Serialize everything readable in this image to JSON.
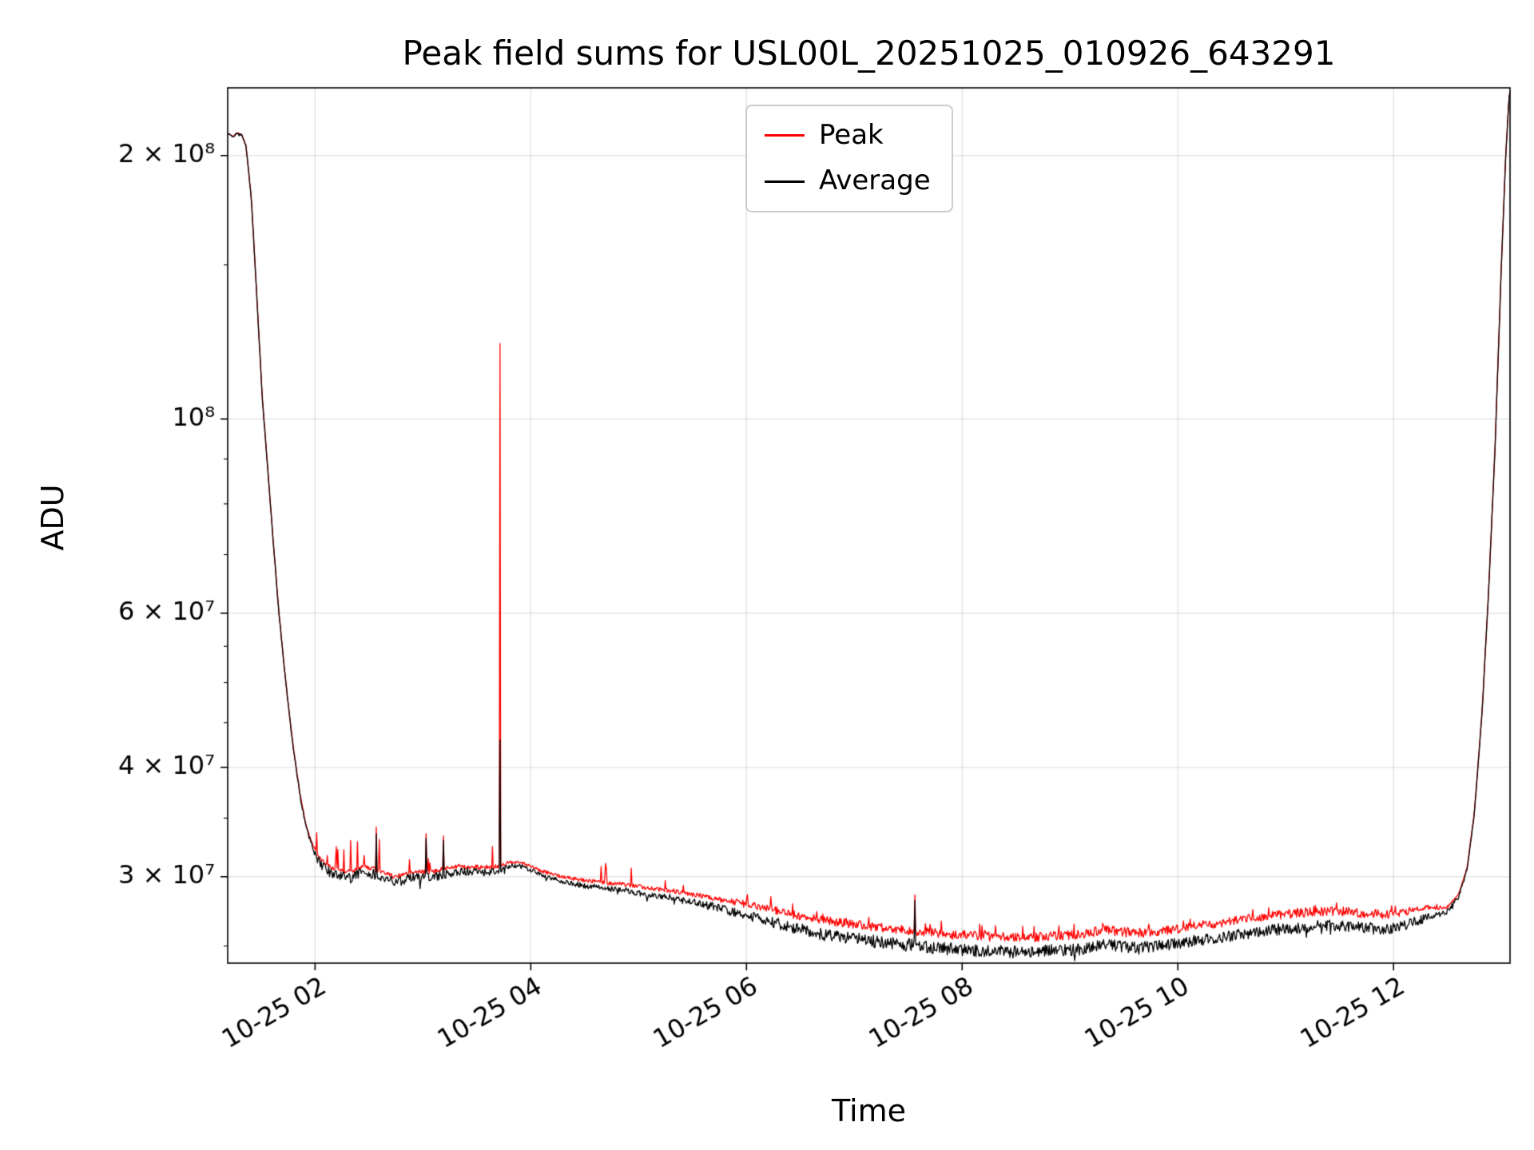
{
  "chart_data": {
    "type": "line",
    "title": "Peak field sums for USL00L_20251025_010926_643291",
    "xlabel": "Time",
    "ylabel": "ADU",
    "yscale": "log",
    "grid": true,
    "legend_position": "upper center",
    "x_domain_hours": [
      1.19,
      13.08
    ],
    "y_domain": [
      23900000.0,
      239000000.0
    ],
    "xticks": [
      {
        "hour": 2,
        "label": "10-25 02"
      },
      {
        "hour": 4,
        "label": "10-25 04"
      },
      {
        "hour": 6,
        "label": "10-25 06"
      },
      {
        "hour": 8,
        "label": "10-25 08"
      },
      {
        "hour": 10,
        "label": "10-25 10"
      },
      {
        "hour": 12,
        "label": "10-25 12"
      }
    ],
    "yticks": [
      {
        "value": 200000000.0,
        "label": "2 × 10⁸"
      },
      {
        "value": 100000000.0,
        "label": "10⁸"
      },
      {
        "value": 60000000.0,
        "label": "6 × 10⁷"
      },
      {
        "value": 40000000.0,
        "label": "4 × 10⁷"
      },
      {
        "value": 30000000.0,
        "label": "3 × 10⁷"
      }
    ],
    "yticks_minor": [
      25000000.0,
      35000000.0,
      45000000.0,
      50000000.0,
      55000000.0,
      70000000.0,
      80000000.0,
      90000000.0,
      150000000.0
    ],
    "series": [
      {
        "name": "Peak",
        "color": "#ff0000"
      },
      {
        "name": "Average",
        "color": "#000000"
      }
    ],
    "seed": 42,
    "samples": 1700,
    "average_anchors": [
      [
        1.19,
        212000000.0
      ],
      [
        1.24,
        210000000.0
      ],
      [
        1.27,
        212000000.0
      ],
      [
        1.32,
        211000000.0
      ],
      [
        1.36,
        205000000.0
      ],
      [
        1.41,
        178000000.0
      ],
      [
        1.46,
        138000000.0
      ],
      [
        1.51,
        106000000.0
      ],
      [
        1.56,
        88000000.0
      ],
      [
        1.61,
        73000000.0
      ],
      [
        1.66,
        61000000.0
      ],
      [
        1.71,
        52500000.0
      ],
      [
        1.76,
        46000000.0
      ],
      [
        1.81,
        41000000.0
      ],
      [
        1.86,
        37200000.0
      ],
      [
        1.91,
        34500000.0
      ],
      [
        1.96,
        32800000.0
      ],
      [
        2.02,
        31500000.0
      ],
      [
        2.08,
        30700000.0
      ],
      [
        2.15,
        30300000.0
      ],
      [
        2.25,
        30000000.0
      ],
      [
        2.35,
        30000000.0
      ],
      [
        2.45,
        30400000.0
      ],
      [
        2.55,
        30200000.0
      ],
      [
        2.65,
        29800000.0
      ],
      [
        2.75,
        29600000.0
      ],
      [
        2.85,
        29800000.0
      ],
      [
        2.95,
        30000000.0
      ],
      [
        3.05,
        29900000.0
      ],
      [
        3.15,
        30100000.0
      ],
      [
        3.25,
        30300000.0
      ],
      [
        3.35,
        30400000.0
      ],
      [
        3.45,
        30400000.0
      ],
      [
        3.55,
        30300000.0
      ],
      [
        3.65,
        30400000.0
      ],
      [
        3.72,
        30500000.0
      ],
      [
        3.78,
        30800000.0
      ],
      [
        3.88,
        30900000.0
      ],
      [
        3.98,
        30600000.0
      ],
      [
        4.1,
        30100000.0
      ],
      [
        4.3,
        29600000.0
      ],
      [
        4.5,
        29300000.0
      ],
      [
        4.7,
        29100000.0
      ],
      [
        4.9,
        28900000.0
      ],
      [
        5.1,
        28600000.0
      ],
      [
        5.3,
        28400000.0
      ],
      [
        5.5,
        28100000.0
      ],
      [
        5.7,
        27700000.0
      ],
      [
        5.9,
        27300000.0
      ],
      [
        6.1,
        26900000.0
      ],
      [
        6.3,
        26500000.0
      ],
      [
        6.5,
        26100000.0
      ],
      [
        6.7,
        25800000.0
      ],
      [
        6.9,
        25600000.0
      ],
      [
        7.1,
        25400000.0
      ],
      [
        7.3,
        25200000.0
      ],
      [
        7.6,
        25000000.0
      ],
      [
        7.9,
        24800000.0
      ],
      [
        8.2,
        24700000.0
      ],
      [
        8.5,
        24600000.0
      ],
      [
        8.8,
        24700000.0
      ],
      [
        9.1,
        24800000.0
      ],
      [
        9.3,
        25100000.0
      ],
      [
        9.45,
        25000000.0
      ],
      [
        9.6,
        24900000.0
      ],
      [
        9.8,
        25000000.0
      ],
      [
        10.0,
        25200000.0
      ],
      [
        10.3,
        25500000.0
      ],
      [
        10.6,
        25800000.0
      ],
      [
        10.9,
        26100000.0
      ],
      [
        11.2,
        26300000.0
      ],
      [
        11.4,
        26400000.0
      ],
      [
        11.6,
        26300000.0
      ],
      [
        11.8,
        26200000.0
      ],
      [
        11.95,
        26100000.0
      ],
      [
        12.1,
        26400000.0
      ],
      [
        12.25,
        26800000.0
      ],
      [
        12.4,
        27100000.0
      ],
      [
        12.5,
        27400000.0
      ],
      [
        12.6,
        28400000.0
      ],
      [
        12.68,
        30500000.0
      ],
      [
        12.75,
        35500000.0
      ],
      [
        12.82,
        46000000.0
      ],
      [
        12.88,
        63000000.0
      ],
      [
        12.94,
        92000000.0
      ],
      [
        13.0,
        150000000.0
      ],
      [
        13.04,
        200000000.0
      ],
      [
        13.07,
        232000000.0
      ],
      [
        13.08,
        237000000.0
      ]
    ],
    "avg_noise_anchors": [
      [
        1.19,
        0.002
      ],
      [
        1.38,
        0.003
      ],
      [
        1.95,
        0.006
      ],
      [
        2.05,
        0.013
      ],
      [
        2.5,
        0.013
      ],
      [
        3.0,
        0.013
      ],
      [
        3.6,
        0.01
      ],
      [
        3.8,
        0.006
      ],
      [
        4.5,
        0.007
      ],
      [
        5.5,
        0.009
      ],
      [
        6.0,
        0.013
      ],
      [
        6.5,
        0.016
      ],
      [
        7.0,
        0.017
      ],
      [
        8.0,
        0.017
      ],
      [
        9.0,
        0.016
      ],
      [
        10.0,
        0.015
      ],
      [
        11.0,
        0.015
      ],
      [
        12.0,
        0.015
      ],
      [
        12.4,
        0.01
      ],
      [
        12.6,
        0.005
      ],
      [
        13.08,
        0.003
      ]
    ],
    "peak_offset_anchors": [
      [
        1.19,
        0.0
      ],
      [
        1.9,
        0.002
      ],
      [
        2.0,
        0.008
      ],
      [
        3.6,
        0.008
      ],
      [
        3.8,
        0.006
      ],
      [
        4.5,
        0.009
      ],
      [
        5.5,
        0.013
      ],
      [
        6.0,
        0.02
      ],
      [
        6.5,
        0.025
      ],
      [
        7.0,
        0.026
      ],
      [
        12.0,
        0.026
      ],
      [
        12.3,
        0.02
      ],
      [
        12.5,
        0.008
      ],
      [
        12.7,
        0.002
      ],
      [
        13.08,
        0.0
      ]
    ],
    "peak_noise_anchors": [
      [
        1.19,
        0.002
      ],
      [
        1.95,
        0.004
      ],
      [
        2.05,
        0.012
      ],
      [
        3.6,
        0.012
      ],
      [
        3.8,
        0.008
      ],
      [
        5.5,
        0.012
      ],
      [
        6.0,
        0.02
      ],
      [
        7.0,
        0.025
      ],
      [
        12.0,
        0.025
      ],
      [
        12.4,
        0.012
      ],
      [
        12.6,
        0.004
      ],
      [
        13.08,
        0.002
      ]
    ],
    "spike_prob_anchors": [
      [
        1.19,
        0.0
      ],
      [
        1.95,
        0.0
      ],
      [
        2.05,
        0.05
      ],
      [
        2.4,
        0.08
      ],
      [
        2.7,
        0.05
      ],
      [
        3.0,
        0.06
      ],
      [
        3.6,
        0.05
      ],
      [
        3.8,
        0.02
      ],
      [
        4.2,
        0.05
      ],
      [
        5.0,
        0.05
      ],
      [
        5.6,
        0.04
      ],
      [
        6.0,
        0.06
      ],
      [
        7.0,
        0.05
      ],
      [
        12.0,
        0.05
      ],
      [
        12.4,
        0.02
      ],
      [
        12.6,
        0.0
      ],
      [
        13.08,
        0.0
      ]
    ],
    "spike_amp_anchors": [
      [
        1.19,
        0.0
      ],
      [
        2.1,
        0.08
      ],
      [
        2.6,
        0.1
      ],
      [
        3.0,
        0.08
      ],
      [
        3.6,
        0.07
      ],
      [
        4.2,
        0.07
      ],
      [
        5.0,
        0.06
      ],
      [
        6.0,
        0.05
      ],
      [
        8.0,
        0.05
      ],
      [
        12.0,
        0.04
      ],
      [
        12.5,
        0.02
      ],
      [
        13.08,
        0.0
      ]
    ],
    "events": [
      {
        "hour": 3.715,
        "peak": 122000000.0,
        "avg": 43000000.0
      },
      {
        "hour": 2.565,
        "peak": 34200000.0,
        "avg": 33600000.0
      },
      {
        "hour": 3.03,
        "peak": 33600000.0,
        "avg": 33200000.0
      },
      {
        "hour": 3.19,
        "peak": 33400000.0,
        "avg": 33000000.0
      },
      {
        "hour": 2.33,
        "peak": 33000000.0,
        "avg": 29500000.0
      },
      {
        "hour": 7.56,
        "peak": 28600000.0,
        "avg": 28200000.0
      }
    ]
  }
}
